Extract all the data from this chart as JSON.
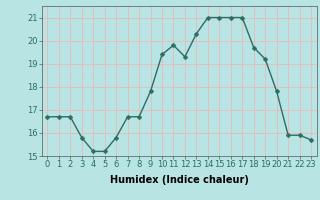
{
  "x": [
    0,
    1,
    2,
    3,
    4,
    5,
    6,
    7,
    8,
    9,
    10,
    11,
    12,
    13,
    14,
    15,
    16,
    17,
    18,
    19,
    20,
    21,
    22,
    23
  ],
  "y": [
    16.7,
    16.7,
    16.7,
    15.8,
    15.2,
    15.2,
    15.8,
    16.7,
    16.7,
    17.8,
    19.4,
    19.8,
    19.3,
    20.3,
    21.0,
    21.0,
    21.0,
    21.0,
    19.7,
    19.2,
    17.8,
    15.9,
    15.9,
    15.7
  ],
  "line_color": "#2d6e63",
  "marker_color": "#2d6e63",
  "bg_color": "#b8e4e4",
  "grid_color": "#e8b8b8",
  "xlabel": "Humidex (Indice chaleur)",
  "ylim": [
    15,
    21.5
  ],
  "xlim": [
    -0.5,
    23.5
  ],
  "yticks": [
    15,
    16,
    17,
    18,
    19,
    20,
    21
  ],
  "xticks": [
    0,
    1,
    2,
    3,
    4,
    5,
    6,
    7,
    8,
    9,
    10,
    11,
    12,
    13,
    14,
    15,
    16,
    17,
    18,
    19,
    20,
    21,
    22,
    23
  ],
  "xtick_labels": [
    "0",
    "1",
    "2",
    "3",
    "4",
    "5",
    "6",
    "7",
    "8",
    "9",
    "10",
    "11",
    "12",
    "13",
    "14",
    "15",
    "16",
    "17",
    "18",
    "19",
    "20",
    "21",
    "22",
    "23"
  ],
  "xlabel_fontsize": 7,
  "tick_fontsize": 6,
  "linewidth": 1.0,
  "markersize": 2.5
}
